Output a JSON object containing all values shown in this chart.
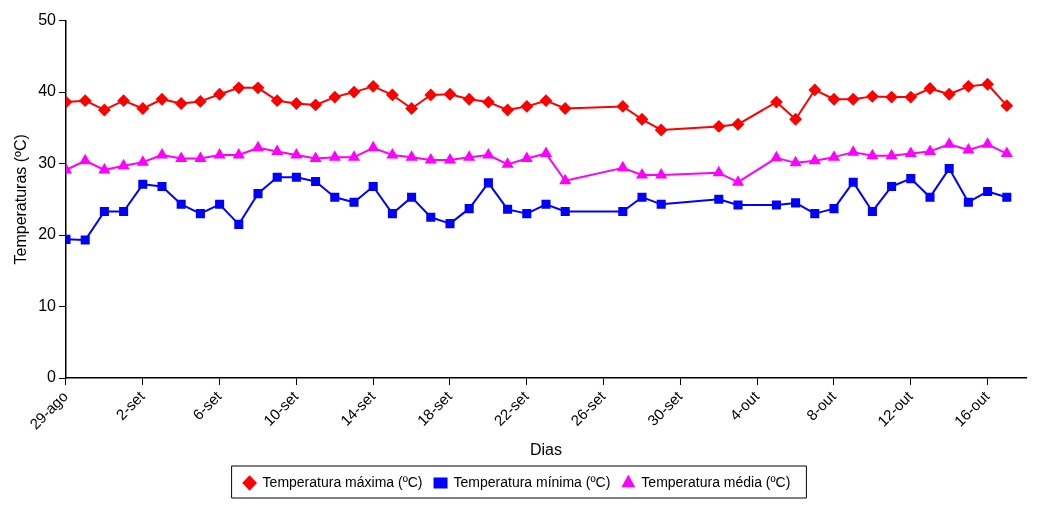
{
  "chart_data": {
    "type": "line",
    "xlabel": "Dias",
    "ylabel": "Temperaturas (ºC)",
    "x": [
      "--08-29",
      "--08-30",
      "--08-31",
      "--09-01",
      "--09-02",
      "--09-03",
      "--09-04",
      "--09-05",
      "--09-06",
      "--09-07",
      "--09-08",
      "--09-09",
      "--09-10",
      "--09-11",
      "--09-12",
      "--09-13",
      "--09-14",
      "--09-15",
      "--09-16",
      "--09-17",
      "--09-18",
      "--09-19",
      "--09-20",
      "--09-21",
      "--09-22",
      "--09-23",
      "--09-24",
      "--09-27",
      "--09-28",
      "--09-29",
      "--10-02",
      "--10-03",
      "--10-05",
      "--10-06",
      "--10-07",
      "--10-08",
      "--10-09",
      "--10-10",
      "--10-11",
      "--10-12",
      "--10-13",
      "--10-14",
      "--10-15",
      "--10-16",
      "--10-17"
    ],
    "series": [
      {
        "name": "Temperatura máxima (ºC)",
        "color": "#ff0000",
        "marker": "diamond",
        "values": [
          38.6,
          38.8,
          37.5,
          38.8,
          37.7,
          39,
          38.4,
          38.7,
          39.7,
          40.6,
          40.6,
          38.8,
          38.4,
          38.2,
          39.3,
          40,
          40.8,
          39.6,
          37.7,
          39.6,
          39.7,
          39,
          38.6,
          37.5,
          38,
          38.8,
          37.7,
          38,
          36.2,
          34.7,
          35.2,
          35.5,
          38.6,
          36.2,
          40.3,
          39,
          39,
          39.4,
          39.3,
          39.3,
          40.5,
          39.7,
          40.8,
          41.1,
          38.1
        ]
      },
      {
        "name": "Temperatura mínima (ºC)",
        "color": "#0000ff",
        "marker": "square",
        "values": [
          19.4,
          19.3,
          23.3,
          23.3,
          27.1,
          26.8,
          24.3,
          23,
          24.3,
          21.5,
          25.8,
          28.1,
          28.1,
          27.5,
          25.3,
          24.6,
          26.8,
          23,
          25.3,
          22.5,
          21.6,
          23.7,
          27.3,
          23.6,
          23,
          24.3,
          23.3,
          23.3,
          25.3,
          24.3,
          25,
          24.2,
          24.2,
          24.5,
          23,
          23.7,
          27.4,
          23.3,
          26.8,
          27.9,
          25.3,
          29.3,
          24.6,
          26.1,
          25.3
        ]
      },
      {
        "name": "Temperatura média (ºC)",
        "color": "#ff00ff",
        "marker": "triangle",
        "values": [
          29.1,
          30.4,
          29.1,
          29.7,
          30.2,
          31.2,
          30.7,
          30.7,
          31.2,
          31.2,
          32.2,
          31.7,
          31.2,
          30.7,
          30.9,
          30.9,
          32.2,
          31.2,
          30.9,
          30.5,
          30.5,
          30.9,
          31.2,
          29.9,
          30.7,
          31.4,
          27.6,
          29.4,
          28.4,
          28.4,
          28.7,
          27.4,
          30.8,
          30.1,
          30.4,
          30.9,
          31.6,
          31.1,
          31.1,
          31.4,
          31.7,
          32.7,
          31.9,
          32.7,
          31.4
        ]
      }
    ],
    "xlim": [
      "--08-29",
      "--10-18"
    ],
    "xticks": [
      {
        "value": "--08-29",
        "label": "29-ago"
      },
      {
        "value": "--09-02",
        "label": "2-set"
      },
      {
        "value": "--09-06",
        "label": "6-set"
      },
      {
        "value": "--09-10",
        "label": "10-set"
      },
      {
        "value": "--09-14",
        "label": "14-set"
      },
      {
        "value": "--09-18",
        "label": "18-set"
      },
      {
        "value": "--09-22",
        "label": "22-set"
      },
      {
        "value": "--09-26",
        "label": "26-set"
      },
      {
        "value": "--09-30",
        "label": "30-set"
      },
      {
        "value": "--10-04",
        "label": "4-out"
      },
      {
        "value": "--10-08",
        "label": "8-out"
      },
      {
        "value": "--10-12",
        "label": "12-out"
      },
      {
        "value": "--10-16",
        "label": "16-out"
      }
    ],
    "ylim": [
      0,
      50
    ],
    "yticks": [
      0,
      10,
      20,
      30,
      40,
      50
    ],
    "grid": false,
    "legend": "bottom",
    "line_style": "solid"
  }
}
